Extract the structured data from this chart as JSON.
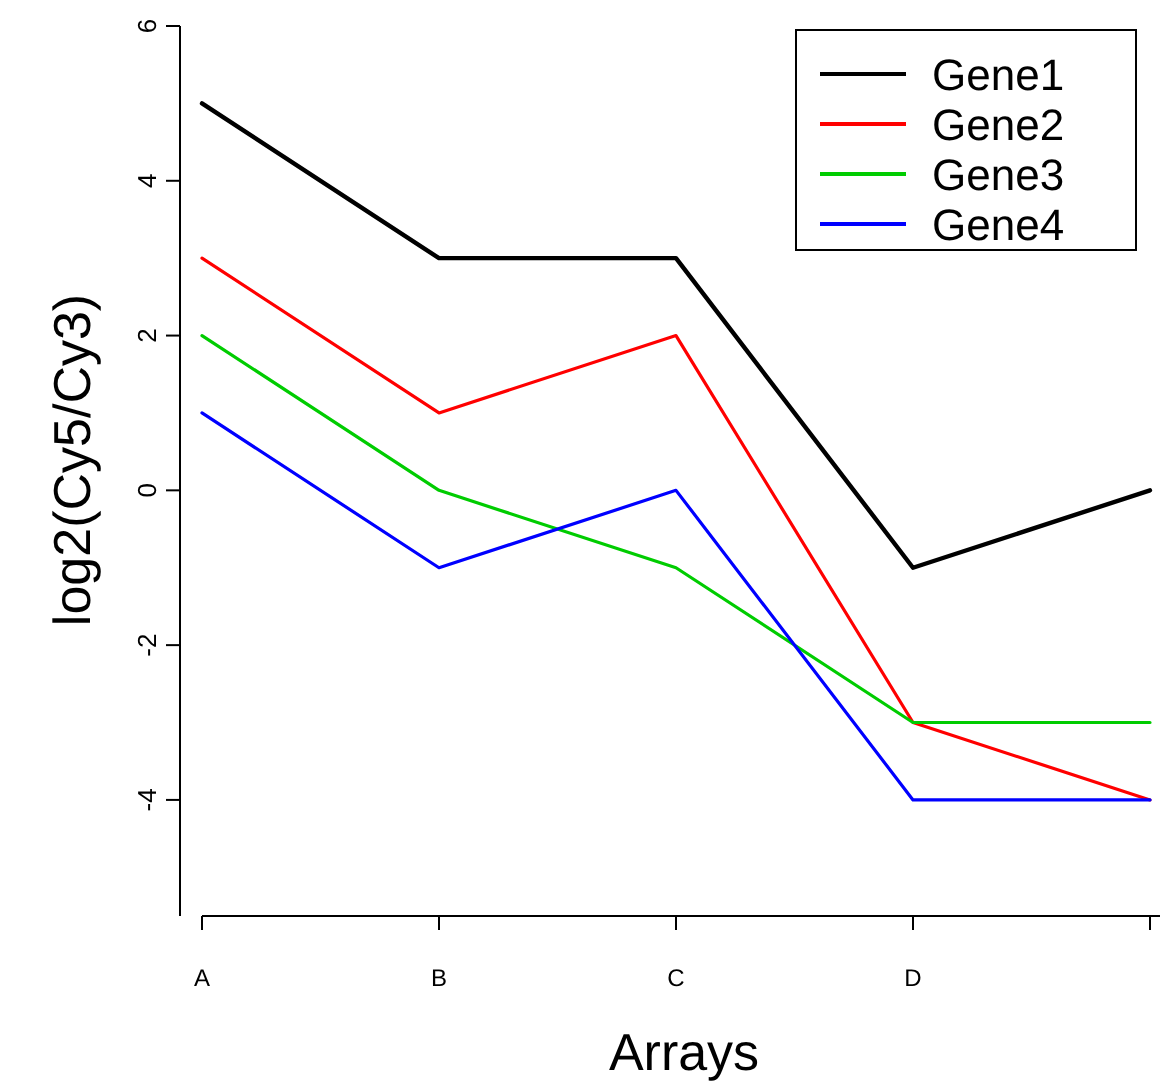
{
  "chart_data": {
    "type": "line",
    "xlabel": "Arrays",
    "ylabel": "log2(Cy5/Cy3)",
    "categories": [
      "A",
      "B",
      "C",
      "D",
      null
    ],
    "ylim": [
      -5.5,
      6
    ],
    "yticks": [
      -4,
      -2,
      0,
      2,
      4,
      6
    ],
    "legend": "top right",
    "marker": "none",
    "line_style": "solid",
    "grid": false,
    "series": [
      {
        "name": "Gene1",
        "color": "#000000",
        "values": [
          5,
          3,
          3,
          -1,
          0
        ]
      },
      {
        "name": "Gene2",
        "color": "#ff0000",
        "values": [
          3,
          1,
          2,
          -3,
          -4
        ]
      },
      {
        "name": "Gene3",
        "color": "#00cc00",
        "values": [
          2,
          0,
          -1,
          -3,
          -3
        ]
      },
      {
        "name": "Gene4",
        "color": "#0000ff",
        "values": [
          1,
          -1,
          0,
          -4,
          -4
        ]
      }
    ]
  }
}
